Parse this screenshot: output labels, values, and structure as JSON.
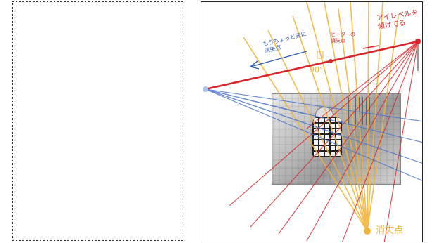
{
  "annotations": {
    "eye_level": "アイレベルを\n傾けてる",
    "vp_more_left": "もうちょっと先に\n消失点",
    "heater_vp": "ヒーターの\n消失点",
    "angle": "90°",
    "vanishing_point": "消失点"
  },
  "colors": {
    "red": "#d8262a",
    "blue": "#4a74c9",
    "yellow": "#f2b43a",
    "ink_blue": "#2c58b8"
  }
}
